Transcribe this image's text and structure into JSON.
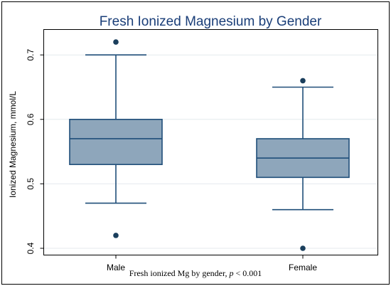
{
  "chart_data": {
    "type": "boxplot",
    "title": "Fresh Ionized Magnesium by Gender",
    "ylabel": "Ionized Magnesium, mmol/L",
    "xlabel": "",
    "ylim": [
      0.39,
      0.745
    ],
    "yticks": [
      0.4,
      0.5,
      0.6,
      0.7
    ],
    "ytick_labels": [
      "0.4",
      "0.5",
      "0.6",
      "0.7"
    ],
    "grid": true,
    "categories": [
      "Male",
      "Female"
    ],
    "boxes": [
      {
        "category": "Male",
        "whisker_low": 0.47,
        "q1": 0.53,
        "median": 0.57,
        "q3": 0.6,
        "whisker_high": 0.7,
        "outliers": [
          0.42,
          0.72
        ]
      },
      {
        "category": "Female",
        "whisker_low": 0.46,
        "q1": 0.51,
        "median": 0.54,
        "q3": 0.57,
        "whisker_high": 0.65,
        "outliers": [
          0.4,
          0.66
        ]
      }
    ],
    "colors": {
      "box_fill": "#8ea6bb",
      "box_stroke": "#1f4e79",
      "outlier": "#1a3e5c",
      "title": "#1a3e78",
      "grid": "#e4eaee",
      "frame": "#000000"
    }
  },
  "caption": {
    "text_before": "Fresh ionized Mg by gender, ",
    "p_symbol": "p",
    "text_after": " < 0.001"
  }
}
